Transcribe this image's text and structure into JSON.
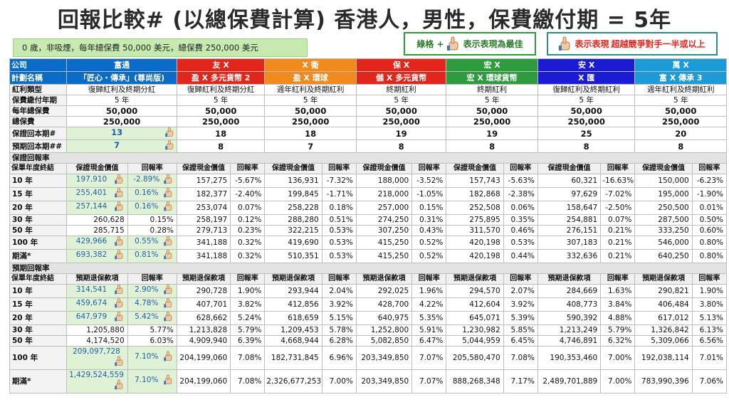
{
  "title": "回報比較# (以總保費計算) 香港人，男性，保費繳付期 = 5年",
  "assumption": "0 歲，非吸煙，每年總保費 50,000 美元，總保費 250,000 美元",
  "legend_best_text1": "綠格 +",
  "legend_best_text2": "表示表現為最佳",
  "legend_beat_text1": "表示表現",
  "legend_beat_text2": "超越競爭對手一半或以上",
  "colors": {
    "blue": "#0a6cc6",
    "orange": "#f08a1c",
    "red": "#e2261b",
    "green": "#2e9b3e",
    "navy": "#1b1bd6",
    "sky": "#1d9bd6",
    "best": "#dff2d6"
  },
  "row_labels": {
    "company": "公司",
    "plan": "計劃名稱",
    "div_type": "紅利類型",
    "pay_period": "保費繳付年期",
    "annual_prem": "每年總保費",
    "total_prem": "總保費",
    "guar_payback": "保證回本期#",
    "proj_payback": "預期回本期##",
    "guar_section": "保證回報率",
    "proj_section": "預期回報率",
    "year_end": "保單年度終結",
    "guar_cv": "保證現金價值",
    "rate": "回報率",
    "proj_sv": "預期退保款項"
  },
  "companies": [
    "富通",
    "友 X",
    "X 衛",
    "保 X",
    "宏 X",
    "安 X",
    "萬 X"
  ],
  "plans": [
    "「匠心・傳承」(尊尚版)",
    "盈 X 多元貨幣 2",
    "盈 X 環球",
    "儲 X 多元貨幣",
    "宏 X 環球貨幣",
    "X 匯",
    "富 X 傳承 3"
  ],
  "div_types": [
    "復歸紅利及終期分紅",
    "復歸紅利及終期分紅",
    "週年紅利及終期紅利",
    "終期紅利",
    "終期紅利",
    "復歸紅利及終期紅利",
    "週年紅利及終期紅利"
  ],
  "pay_periods": [
    "5 年",
    "5 年",
    "5 年",
    "5 年",
    "5 年",
    "5 年",
    "5 年"
  ],
  "annual_prems": [
    "50,000",
    "50,000",
    "50,000",
    "50,000",
    "50,000",
    "50,000",
    "50,000"
  ],
  "total_prems": [
    "250,000",
    "250,000",
    "250,000",
    "250,000",
    "250,000",
    "250,000",
    "250,000"
  ],
  "guar_payback": [
    "13",
    "18",
    "18",
    "19",
    "19",
    "25",
    "20"
  ],
  "proj_payback": [
    "7",
    "8",
    "7",
    "8",
    "8",
    "8",
    "8"
  ],
  "guar_rows": [
    {
      "year": "10 年",
      "cells": [
        [
          "197,910",
          "-2.89%"
        ],
        [
          "157,275",
          "-5.67%"
        ],
        [
          "136,931",
          "-7.32%"
        ],
        [
          "188,000",
          "-3.52%"
        ],
        [
          "157,743",
          "-5.63%"
        ],
        [
          "60,321",
          "-16.63%"
        ],
        [
          "150,000",
          "-6.23%"
        ]
      ]
    },
    {
      "year": "15 年",
      "cells": [
        [
          "255,401",
          "0.16%"
        ],
        [
          "182,377",
          "-2.40%"
        ],
        [
          "199,845",
          "-1.71%"
        ],
        [
          "218,000",
          "-1.05%"
        ],
        [
          "182,868",
          "-2.38%"
        ],
        [
          "97,629",
          "-7.02%"
        ],
        [
          "195,000",
          "-1.90%"
        ]
      ]
    },
    {
      "year": "20 年",
      "cells": [
        [
          "257,144",
          "0.16%"
        ],
        [
          "253,074",
          "0.07%"
        ],
        [
          "258,228",
          "0.18%"
        ],
        [
          "257,000",
          "0.15%"
        ],
        [
          "252,508",
          "0.06%"
        ],
        [
          "158,647",
          "-2.50%"
        ],
        [
          "250,500",
          "0.01%"
        ]
      ]
    },
    {
      "year": "30 年",
      "cells": [
        [
          "260,628",
          "0.15%"
        ],
        [
          "258,197",
          "0.12%"
        ],
        [
          "288,280",
          "0.51%"
        ],
        [
          "274,250",
          "0.31%"
        ],
        [
          "275,895",
          "0.35%"
        ],
        [
          "254,881",
          "0.07%"
        ],
        [
          "287,500",
          "0.50%"
        ]
      ]
    },
    {
      "year": "50 年",
      "cells": [
        [
          "285,715",
          "0.28%"
        ],
        [
          "279,713",
          "0.23%"
        ],
        [
          "322,215",
          "0.53%"
        ],
        [
          "307,250",
          "0.43%"
        ],
        [
          "311,570",
          "0.46%"
        ],
        [
          "276,151",
          "0.21%"
        ],
        [
          "333,250",
          "0.60%"
        ]
      ]
    },
    {
      "year": "100 年",
      "cells": [
        [
          "429,966",
          "0.55%"
        ],
        [
          "341,188",
          "0.32%"
        ],
        [
          "419,690",
          "0.53%"
        ],
        [
          "415,250",
          "0.52%"
        ],
        [
          "420,198",
          "0.53%"
        ],
        [
          "307,183",
          "0.21%"
        ],
        [
          "546,000",
          "0.80%"
        ]
      ]
    },
    {
      "year": "期滿*",
      "cells": [
        [
          "693,382",
          "0.81%"
        ],
        [
          "341,188",
          "0.32%"
        ],
        [
          "510,351",
          "0.53%"
        ],
        [
          "415,250",
          "0.52%"
        ],
        [
          "420,198",
          "0.44%"
        ],
        [
          "332,636",
          "0.21%"
        ],
        [
          "640,250",
          "0.80%"
        ]
      ]
    }
  ],
  "proj_rows": [
    {
      "year": "10 年",
      "cells": [
        [
          "314,541",
          "2.90%"
        ],
        [
          "290,728",
          "1.90%"
        ],
        [
          "293,944",
          "2.04%"
        ],
        [
          "292,025",
          "1.96%"
        ],
        [
          "294,570",
          "2.07%"
        ],
        [
          "284,669",
          "1.63%"
        ],
        [
          "290,821",
          "1.90%"
        ]
      ]
    },
    {
      "year": "15 年",
      "cells": [
        [
          "459,674",
          "4.78%"
        ],
        [
          "407,701",
          "3.82%"
        ],
        [
          "412,856",
          "3.92%"
        ],
        [
          "428,700",
          "4.22%"
        ],
        [
          "412,604",
          "3.92%"
        ],
        [
          "408,773",
          "3.84%"
        ],
        [
          "406,484",
          "3.80%"
        ]
      ]
    },
    {
      "year": "20 年",
      "cells": [
        [
          "647,979",
          "5.42%"
        ],
        [
          "628,662",
          "5.24%"
        ],
        [
          "618,659",
          "5.15%"
        ],
        [
          "640,975",
          "5.35%"
        ],
        [
          "645,071",
          "5.39%"
        ],
        [
          "590,392",
          "4.88%"
        ],
        [
          "617,012",
          "5.13%"
        ]
      ]
    },
    {
      "year": "30 年",
      "cells": [
        [
          "1,205,880",
          "5.77%"
        ],
        [
          "1,213,828",
          "5.79%"
        ],
        [
          "1,209,453",
          "5.78%"
        ],
        [
          "1,252,800",
          "5.91%"
        ],
        [
          "1,230,982",
          "5.85%"
        ],
        [
          "1,213,249",
          "5.79%"
        ],
        [
          "1,326,842",
          "6.13%"
        ]
      ]
    },
    {
      "year": "50 年",
      "cells": [
        [
          "4,174,520",
          "6.03%"
        ],
        [
          "4,909,940",
          "6.39%"
        ],
        [
          "4,668,944",
          "6.28%"
        ],
        [
          "5,082,850",
          "6.47%"
        ],
        [
          "5,044,959",
          "6.45%"
        ],
        [
          "4,746,891",
          "6.32%"
        ],
        [
          "5,309,066",
          "6.56%"
        ]
      ]
    },
    {
      "year": "100 年",
      "cells": [
        [
          "209,097,728",
          "7.10%"
        ],
        [
          "204,199,060",
          "7.08%"
        ],
        [
          "182,731,845",
          "6.96%"
        ],
        [
          "203,349,850",
          "7.07%"
        ],
        [
          "205,580,470",
          "7.08%"
        ],
        [
          "190,353,460",
          "7.00%"
        ],
        [
          "192,038,114",
          "7.01%"
        ]
      ]
    },
    {
      "year": "期滿*",
      "cells": [
        [
          "1,429,524,559",
          "7.10%"
        ],
        [
          "204,199,060",
          "7.08%"
        ],
        [
          "2,326,677,253",
          "7.00%"
        ],
        [
          "203,349,850",
          "7.07%"
        ],
        [
          "888,268,348",
          "7.17%"
        ],
        [
          "2,489,701,889",
          "7.00%"
        ],
        [
          "783,990,396",
          "7.06%"
        ]
      ]
    }
  ]
}
